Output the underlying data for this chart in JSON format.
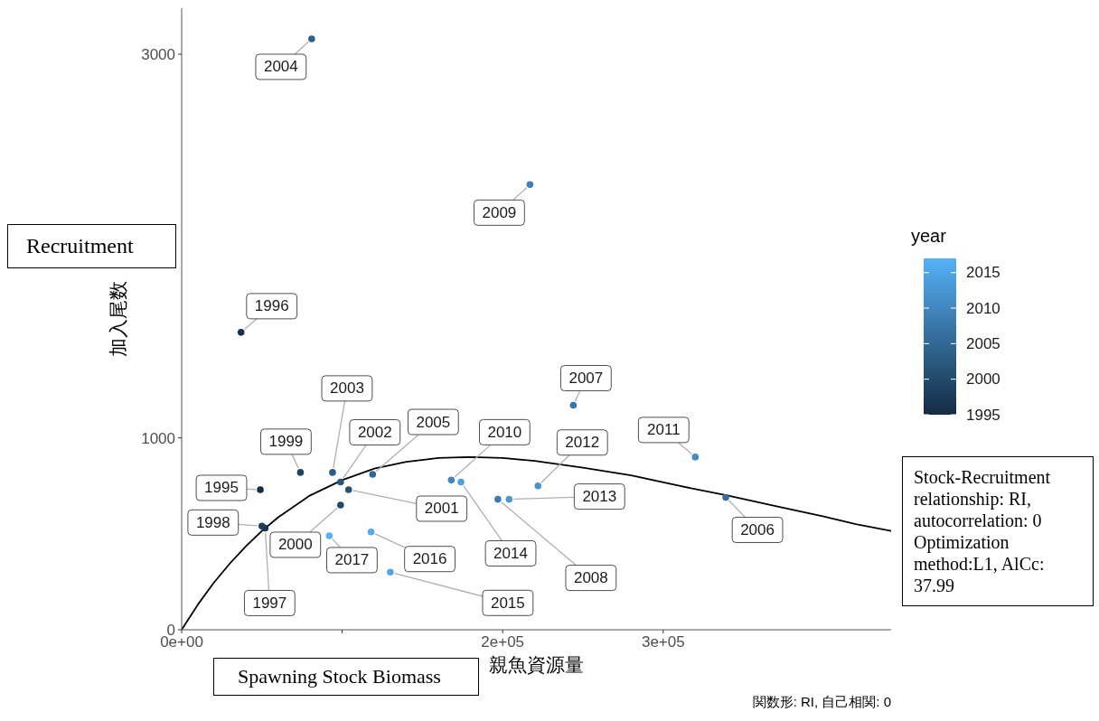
{
  "chart_data": {
    "type": "scatter",
    "xlabel": "親魚資源量",
    "ylabel": "加入尾数",
    "clabel": "year",
    "annotations": [
      "Recruitment",
      "Spawning Stock Biomass",
      "Stock-Recruitment relationship: RI, autocorrelation: 0 Optimization method:L1, AlCc: 37.99",
      "関数形: RI, 自己相関: 0",
      {
        "text": "1995",
        "x": 49000,
        "y": 730
      },
      {
        "text": "1996",
        "x": 37000,
        "y": 1550
      },
      {
        "text": "1997",
        "x": 52000,
        "y": 530
      },
      {
        "text": "1998",
        "x": 50000,
        "y": 540
      },
      {
        "text": "1999",
        "x": 74000,
        "y": 820
      },
      {
        "text": "2000",
        "x": 99000,
        "y": 650
      },
      {
        "text": "2001",
        "x": 104000,
        "y": 730
      },
      {
        "text": "2002",
        "x": 99000,
        "y": 770
      },
      {
        "text": "2003",
        "x": 94000,
        "y": 820
      },
      {
        "text": "2004",
        "x": 81000,
        "y": 3080
      },
      {
        "text": "2005",
        "x": 119000,
        "y": 810
      },
      {
        "text": "2006",
        "x": 339000,
        "y": 690
      },
      {
        "text": "2007",
        "x": 244000,
        "y": 1170
      },
      {
        "text": "2008",
        "x": 197000,
        "y": 680
      },
      {
        "text": "2009",
        "x": 217000,
        "y": 2320
      },
      {
        "text": "2010",
        "x": 168000,
        "y": 780
      },
      {
        "text": "2011",
        "x": 320000,
        "y": 900
      },
      {
        "text": "2012",
        "x": 222000,
        "y": 750
      },
      {
        "text": "2013",
        "x": 204000,
        "y": 680
      },
      {
        "text": "2014",
        "x": 174000,
        "y": 770
      },
      {
        "text": "2015",
        "x": 130000,
        "y": 300
      },
      {
        "text": "2016",
        "x": 118000,
        "y": 510
      },
      {
        "text": "2017",
        "x": 92000,
        "y": 490
      }
    ],
    "xlim": [
      0,
      442000
    ],
    "ylim": [
      0,
      3240
    ],
    "xticks": [
      {
        "value": 0,
        "label": "0e+00"
      },
      {
        "value": 100000,
        "label": null
      },
      {
        "value": 200000,
        "label": "2e+05"
      },
      {
        "value": 300000,
        "label": "3e+05"
      }
    ],
    "yticks": [
      0,
      1000,
      3000
    ],
    "clim": [
      1995,
      2017
    ],
    "cticks": [
      1995,
      2000,
      2005,
      2010,
      2015
    ],
    "series": [
      {
        "marker": "circle",
        "x": [
          49000,
          37000,
          52000,
          50000,
          74000,
          99000,
          104000,
          99000,
          94000,
          81000,
          119000,
          339000,
          244000,
          197000,
          217000,
          168000,
          320000,
          222000,
          204000,
          174000,
          130000,
          118000,
          92000
        ],
        "values": [
          730,
          1550,
          530,
          540,
          820,
          650,
          730,
          770,
          820,
          3080,
          810,
          690,
          1170,
          680,
          2320,
          780,
          900,
          750,
          680,
          770,
          300,
          510,
          490
        ],
        "cvalues": [
          1995,
          1996,
          1997,
          1998,
          1999,
          2000,
          2001,
          2002,
          2003,
          2004,
          2005,
          2006,
          2007,
          2008,
          2009,
          2010,
          2011,
          2012,
          2013,
          2014,
          2015,
          2016,
          2017
        ],
        "colors": [
          "#132b43",
          "#16314b",
          "#193753",
          "#1c3d5c",
          "#1f4364",
          "#22496c",
          "#255074",
          "#28567c",
          "#2b5c84",
          "#2e628d",
          "#316895",
          "#356e9d",
          "#3874a5",
          "#3b7aad",
          "#3e80b6",
          "#4186be",
          "#448dc6",
          "#4793ce",
          "#4a99d6",
          "#4d9fde",
          "#50a5e7",
          "#53abef",
          "#56b1f7"
        ]
      },
      {
        "type": "line",
        "color": "#000000",
        "marker": "none",
        "line_style": "solid",
        "x": [
          0,
          10000,
          20000,
          30000,
          40000,
          50000,
          60000,
          80000,
          100000,
          120000,
          140000,
          160000,
          180000,
          200000,
          220000,
          250000,
          280000,
          310000,
          340000,
          370000,
          400000,
          420000,
          442000
        ],
        "values": [
          0,
          130,
          245,
          345,
          435,
          515,
          585,
          700,
          780,
          840,
          875,
          895,
          900,
          895,
          880,
          845,
          805,
          750,
          700,
          645,
          590,
          550,
          515
        ]
      }
    ]
  }
}
